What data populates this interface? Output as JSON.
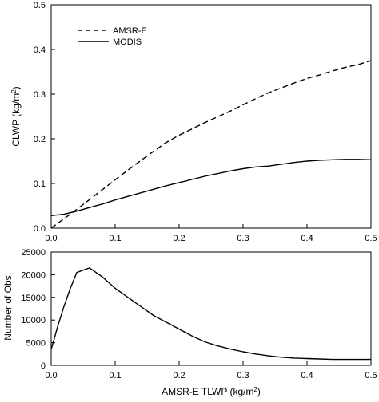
{
  "chart_data": [
    {
      "type": "line",
      "xlabel": "",
      "ylabel": "CLWP (kg/m²)",
      "ylabel_parts": {
        "main": "CLWP (kg/m",
        "sup": "2",
        "end": ")"
      },
      "xlim": [
        0,
        0.5
      ],
      "ylim": [
        0,
        0.5
      ],
      "xticks": [
        0.0,
        0.1,
        0.2,
        0.3,
        0.4,
        0.5
      ],
      "xtick_labels": [
        "0.0",
        "0.1",
        "0.2",
        "0.3",
        "0.4",
        "0.5"
      ],
      "yticks": [
        0.0,
        0.1,
        0.2,
        0.3,
        0.4,
        0.5
      ],
      "ytick_labels": [
        "0.0",
        "0.1",
        "0.2",
        "0.3",
        "0.4",
        "0.5"
      ],
      "grid": false,
      "legend_position": "top-left",
      "series": [
        {
          "name": "AMSR-E",
          "style": "dashed",
          "color": "#000000",
          "x": [
            0.0,
            0.02,
            0.04,
            0.06,
            0.08,
            0.1,
            0.12,
            0.14,
            0.16,
            0.18,
            0.2,
            0.22,
            0.24,
            0.26,
            0.28,
            0.3,
            0.32,
            0.34,
            0.36,
            0.38,
            0.4,
            0.42,
            0.44,
            0.46,
            0.48,
            0.5
          ],
          "y": [
            0.0,
            0.021,
            0.042,
            0.064,
            0.086,
            0.108,
            0.13,
            0.151,
            0.172,
            0.192,
            0.208,
            0.222,
            0.236,
            0.249,
            0.262,
            0.276,
            0.29,
            0.303,
            0.314,
            0.325,
            0.335,
            0.343,
            0.352,
            0.36,
            0.366,
            0.375
          ]
        },
        {
          "name": "MODIS",
          "style": "solid",
          "color": "#000000",
          "x": [
            0.0,
            0.02,
            0.04,
            0.06,
            0.08,
            0.1,
            0.12,
            0.14,
            0.16,
            0.18,
            0.2,
            0.22,
            0.24,
            0.26,
            0.28,
            0.3,
            0.32,
            0.34,
            0.36,
            0.38,
            0.4,
            0.42,
            0.44,
            0.46,
            0.48,
            0.5
          ],
          "y": [
            0.028,
            0.031,
            0.038,
            0.046,
            0.054,
            0.063,
            0.071,
            0.079,
            0.087,
            0.095,
            0.102,
            0.109,
            0.116,
            0.122,
            0.128,
            0.133,
            0.137,
            0.139,
            0.143,
            0.147,
            0.15,
            0.152,
            0.153,
            0.154,
            0.154,
            0.153
          ]
        }
      ]
    },
    {
      "type": "line",
      "xlabel": "AMSR-E TLWP (kg/m²)",
      "xlabel_parts": {
        "main": "AMSR-E TLWP (kg/m",
        "sup": "2",
        "end": ")"
      },
      "ylabel": "Number of Obs",
      "xlim": [
        0,
        0.5
      ],
      "ylim": [
        0,
        25000
      ],
      "xticks": [
        0.0,
        0.1,
        0.2,
        0.3,
        0.4,
        0.5
      ],
      "xtick_labels": [
        "0.0",
        "0.1",
        "0.2",
        "0.3",
        "0.4",
        "0.5"
      ],
      "yticks": [
        0,
        5000,
        10000,
        15000,
        20000,
        25000
      ],
      "ytick_labels": [
        "0",
        "5000",
        "10000",
        "15000",
        "20000",
        "25000"
      ],
      "grid": false,
      "series": [
        {
          "style": "solid",
          "color": "#000000",
          "x": [
            0.0,
            0.01,
            0.02,
            0.03,
            0.04,
            0.05,
            0.06,
            0.08,
            0.1,
            0.12,
            0.14,
            0.16,
            0.18,
            0.2,
            0.22,
            0.24,
            0.26,
            0.28,
            0.3,
            0.32,
            0.34,
            0.36,
            0.38,
            0.4,
            0.42,
            0.44,
            0.46,
            0.48,
            0.5
          ],
          "y": [
            3500,
            8500,
            13000,
            17000,
            20500,
            21000,
            21500,
            19500,
            17000,
            15000,
            13000,
            11000,
            9500,
            8000,
            6500,
            5200,
            4300,
            3600,
            3000,
            2500,
            2100,
            1800,
            1600,
            1500,
            1400,
            1300,
            1300,
            1300,
            1300
          ]
        }
      ]
    }
  ]
}
